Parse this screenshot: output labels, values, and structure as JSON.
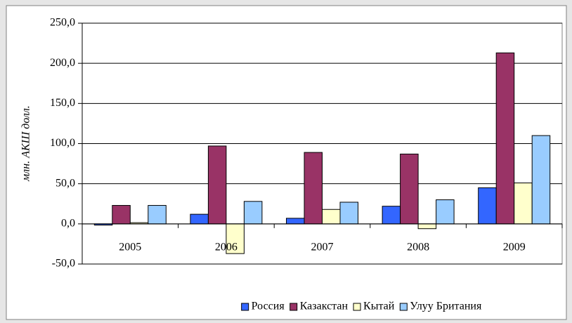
{
  "chart_data": {
    "type": "bar",
    "y_label": "млн. АКШ долл.",
    "categories": [
      "2005",
      "2006",
      "2007",
      "2008",
      "2009"
    ],
    "series": [
      {
        "name": "Россия",
        "color": "#3366ff",
        "values": [
          -1.5,
          12,
          7,
          22,
          45
        ]
      },
      {
        "name": "Казакстан",
        "color": "#993366",
        "values": [
          23,
          97,
          89,
          87,
          213
        ]
      },
      {
        "name": "Кытай",
        "color": "#ffffcc",
        "values": [
          1.5,
          -37,
          18,
          -6,
          51
        ]
      },
      {
        "name": "Улуу Британия",
        "color": "#99ccff",
        "values": [
          23,
          28,
          27,
          30,
          110
        ]
      }
    ],
    "ylim": [
      -50,
      250
    ],
    "yticks": [
      {
        "value": -50,
        "label": "-50,0"
      },
      {
        "value": 0,
        "label": "0,0"
      },
      {
        "value": 50,
        "label": "50,0"
      },
      {
        "value": 100,
        "label": "100,0"
      },
      {
        "value": 150,
        "label": "150,0"
      },
      {
        "value": 200,
        "label": "200,0"
      },
      {
        "value": 250,
        "label": "250,0"
      }
    ],
    "grid": true,
    "legend": "bottom"
  }
}
